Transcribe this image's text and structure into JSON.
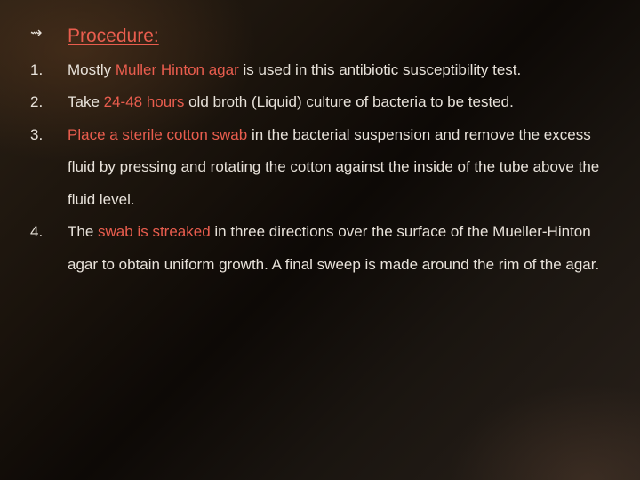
{
  "slide": {
    "background_gradient": [
      "#2a2015",
      "#1a130c",
      "#0d0906",
      "#1a1510",
      "#28201a"
    ],
    "text_color": "#e8e2da",
    "highlight_color": "#e95d4e",
    "title_bullet": "⇝",
    "title": "Procedure:",
    "title_fontsize": 21,
    "body_fontsize": 17,
    "line_height": 2.15,
    "items": [
      {
        "num": "1.",
        "pre1": "Mostly ",
        "hl1": "Muller Hinton agar",
        "post1": " is used in this antibiotic susceptibility test."
      },
      {
        "num": "2.",
        "pre1": "Take ",
        "hl1": "24-48 hours",
        "post1": " old broth (Liquid) culture of  bacteria to be tested."
      },
      {
        "num": "3.",
        "hl1": "Place a sterile cotton swab",
        "post1": " in the bacterial suspension and remove the excess fluid by pressing and rotating the cotton against the inside of the tube above the fluid level."
      },
      {
        "num": "4.",
        "pre1": "The ",
        "hl1": "swab is streaked",
        "post1": " in three directions over the surface of the Mueller-Hinton agar to obtain uniform growth. A final sweep is made around the rim of the agar."
      }
    ]
  }
}
